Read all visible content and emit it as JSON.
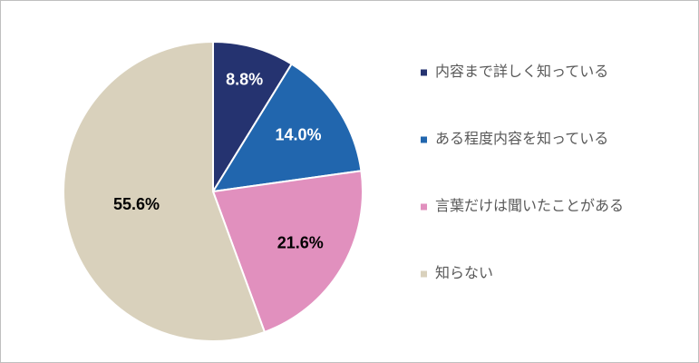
{
  "chart_data": {
    "type": "pie",
    "categories": [
      "内容まで詳しく知っている",
      "ある程度内容を知っている",
      "言葉だけは聞いたことがある",
      "知らない"
    ],
    "values": [
      8.8,
      14.0,
      21.6,
      55.6
    ],
    "value_labels": [
      "8.8%",
      "14.0%",
      "21.6%",
      "55.6%"
    ],
    "colors": [
      "#253370",
      "#2166ae",
      "#e190be",
      "#d9d1bc"
    ],
    "label_colors": [
      "#ffffff",
      "#ffffff",
      "#000000",
      "#000000"
    ],
    "legend": "right"
  }
}
